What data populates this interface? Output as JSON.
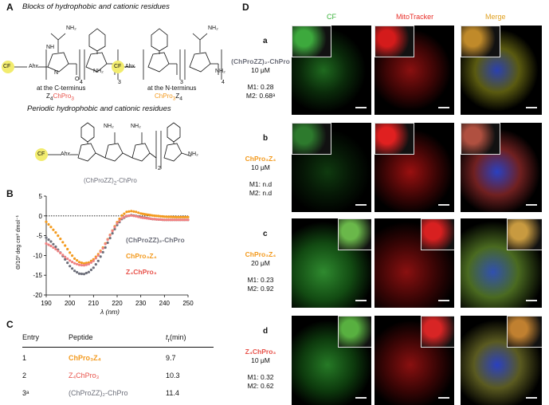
{
  "panel_A": {
    "letter": "A",
    "heading1": "Blocks of hydrophobic and cationic residues",
    "heading2": "Periodic hydrophobic and cationic residues",
    "struct1": {
      "label1": "at the C-terminus",
      "name_pre": "Z",
      "name_sub": "4",
      "name_post": "ChPro",
      "name_sub2": "3"
    },
    "struct2": {
      "label1": "at the N-terminus",
      "name_pre": "ChPro",
      "name_sub": "3",
      "name_post": "Z",
      "name_sub2": "4"
    },
    "struct3": {
      "name": "(ChProZZ)",
      "name_sub": "2",
      "name_post": "-ChPro"
    },
    "cf": "CF",
    "ahx": "Ahx",
    "nh2": "NH₂",
    "h2n": "H₂N",
    "nh": "NH",
    "n": "N",
    "o": "O",
    "sub4": "4",
    "sub3": "3",
    "sub2": "2"
  },
  "panel_B": {
    "letter": "B",
    "ylabel": "Θ/10³ deg cm² dmol⁻¹",
    "xlabel": "λ (nm)",
    "legend": [
      "(ChProZZ)₂-ChPro",
      "ChPro₃Z₄",
      "Z₄ChPro₃"
    ]
  },
  "chart_data": {
    "type": "line",
    "xlabel": "λ (nm)",
    "ylabel": "Θ/10³ deg cm² dmol⁻¹",
    "xlim": [
      190,
      250
    ],
    "ylim": [
      -20,
      5
    ],
    "xticks": [
      190,
      200,
      210,
      220,
      230,
      240,
      250
    ],
    "yticks": [
      5,
      0,
      -5,
      -10,
      -15,
      -20
    ],
    "series": [
      {
        "name": "(ChProZZ)₂-ChPro",
        "color": "#6d6f7a",
        "x": [
          190,
          192,
          194,
          196,
          198,
          200,
          202,
          204,
          206,
          208,
          210,
          212,
          214,
          216,
          218,
          220,
          222,
          224,
          226,
          228,
          230,
          235,
          240,
          245,
          250
        ],
        "y": [
          -5.5,
          -6.5,
          -7.8,
          -9.3,
          -11.0,
          -12.7,
          -13.9,
          -14.6,
          -14.7,
          -14.2,
          -13.1,
          -11.4,
          -9.2,
          -6.8,
          -4.4,
          -2.3,
          -0.8,
          -0.1,
          0.2,
          0.0,
          -0.3,
          -0.8,
          -1.0,
          -1.0,
          -1.0
        ]
      },
      {
        "name": "ChPro₃Z₄",
        "color": "#f39a1e",
        "x": [
          190,
          192,
          194,
          196,
          198,
          200,
          202,
          204,
          206,
          208,
          210,
          212,
          214,
          216,
          218,
          220,
          222,
          224,
          226,
          228,
          230,
          235,
          240,
          245,
          250
        ],
        "y": [
          -1.5,
          -2.8,
          -4.2,
          -5.8,
          -7.5,
          -9.3,
          -10.8,
          -11.7,
          -12.0,
          -11.8,
          -11.0,
          -9.7,
          -8.0,
          -5.9,
          -3.7,
          -1.6,
          0.1,
          1.0,
          1.2,
          1.0,
          0.6,
          0.1,
          -0.2,
          -0.3,
          -0.3
        ]
      },
      {
        "name": "Z₄ChPro₃",
        "color": "#f08080",
        "x": [
          190,
          192,
          194,
          196,
          198,
          200,
          202,
          204,
          206,
          208,
          210,
          212,
          214,
          216,
          218,
          220,
          222,
          224,
          226,
          228,
          230,
          235,
          240,
          245,
          250
        ],
        "y": [
          -7.0,
          -7.6,
          -8.4,
          -9.4,
          -10.4,
          -11.3,
          -12.0,
          -12.4,
          -12.5,
          -12.2,
          -11.4,
          -10.0,
          -8.2,
          -6.0,
          -3.8,
          -1.9,
          -0.6,
          0.0,
          0.1,
          -0.1,
          -0.4,
          -0.8,
          -1.0,
          -1.0,
          -1.0
        ]
      }
    ],
    "zero_line": "dotted"
  },
  "panel_C": {
    "letter": "C",
    "headers": {
      "entry": "Entry",
      "peptide": "Peptide",
      "tr": "t",
      "tr_sub": "r",
      "tr_post": "(min)"
    },
    "rows": [
      {
        "entry": "1",
        "peptide": "ChPro₃Z₄",
        "tr": "9.7"
      },
      {
        "entry": "2",
        "peptide": "Z₄ChPro₃",
        "tr": "10.3"
      },
      {
        "entry": "3ᵃ",
        "peptide": "(ChProZZ)₂-ChPro",
        "tr": "11.4"
      }
    ]
  },
  "panel_D": {
    "letter": "D",
    "columns": [
      "CF",
      "MitoTracker",
      "Merge"
    ],
    "rows": [
      {
        "letter": "a",
        "peptide": "(ChProZZ)₂-ChPro",
        "conc": "10 μM",
        "m1": "M1: 0.28",
        "m2": "M2: 0.68ᵃ"
      },
      {
        "letter": "b",
        "peptide": "ChPro₃Z₄",
        "conc": "10 μM",
        "m1": "M1: n.d",
        "m2": "M2: n.d"
      },
      {
        "letter": "c",
        "peptide": "ChPro₃Z₄",
        "conc": "20 μM",
        "m1": "M1: 0.23",
        "m2": "M2: 0.92"
      },
      {
        "letter": "d",
        "peptide": "Z₄ChPro₃",
        "conc": "10 μM",
        "m1": "M1: 0.32",
        "m2": "M2: 0.62"
      }
    ]
  }
}
